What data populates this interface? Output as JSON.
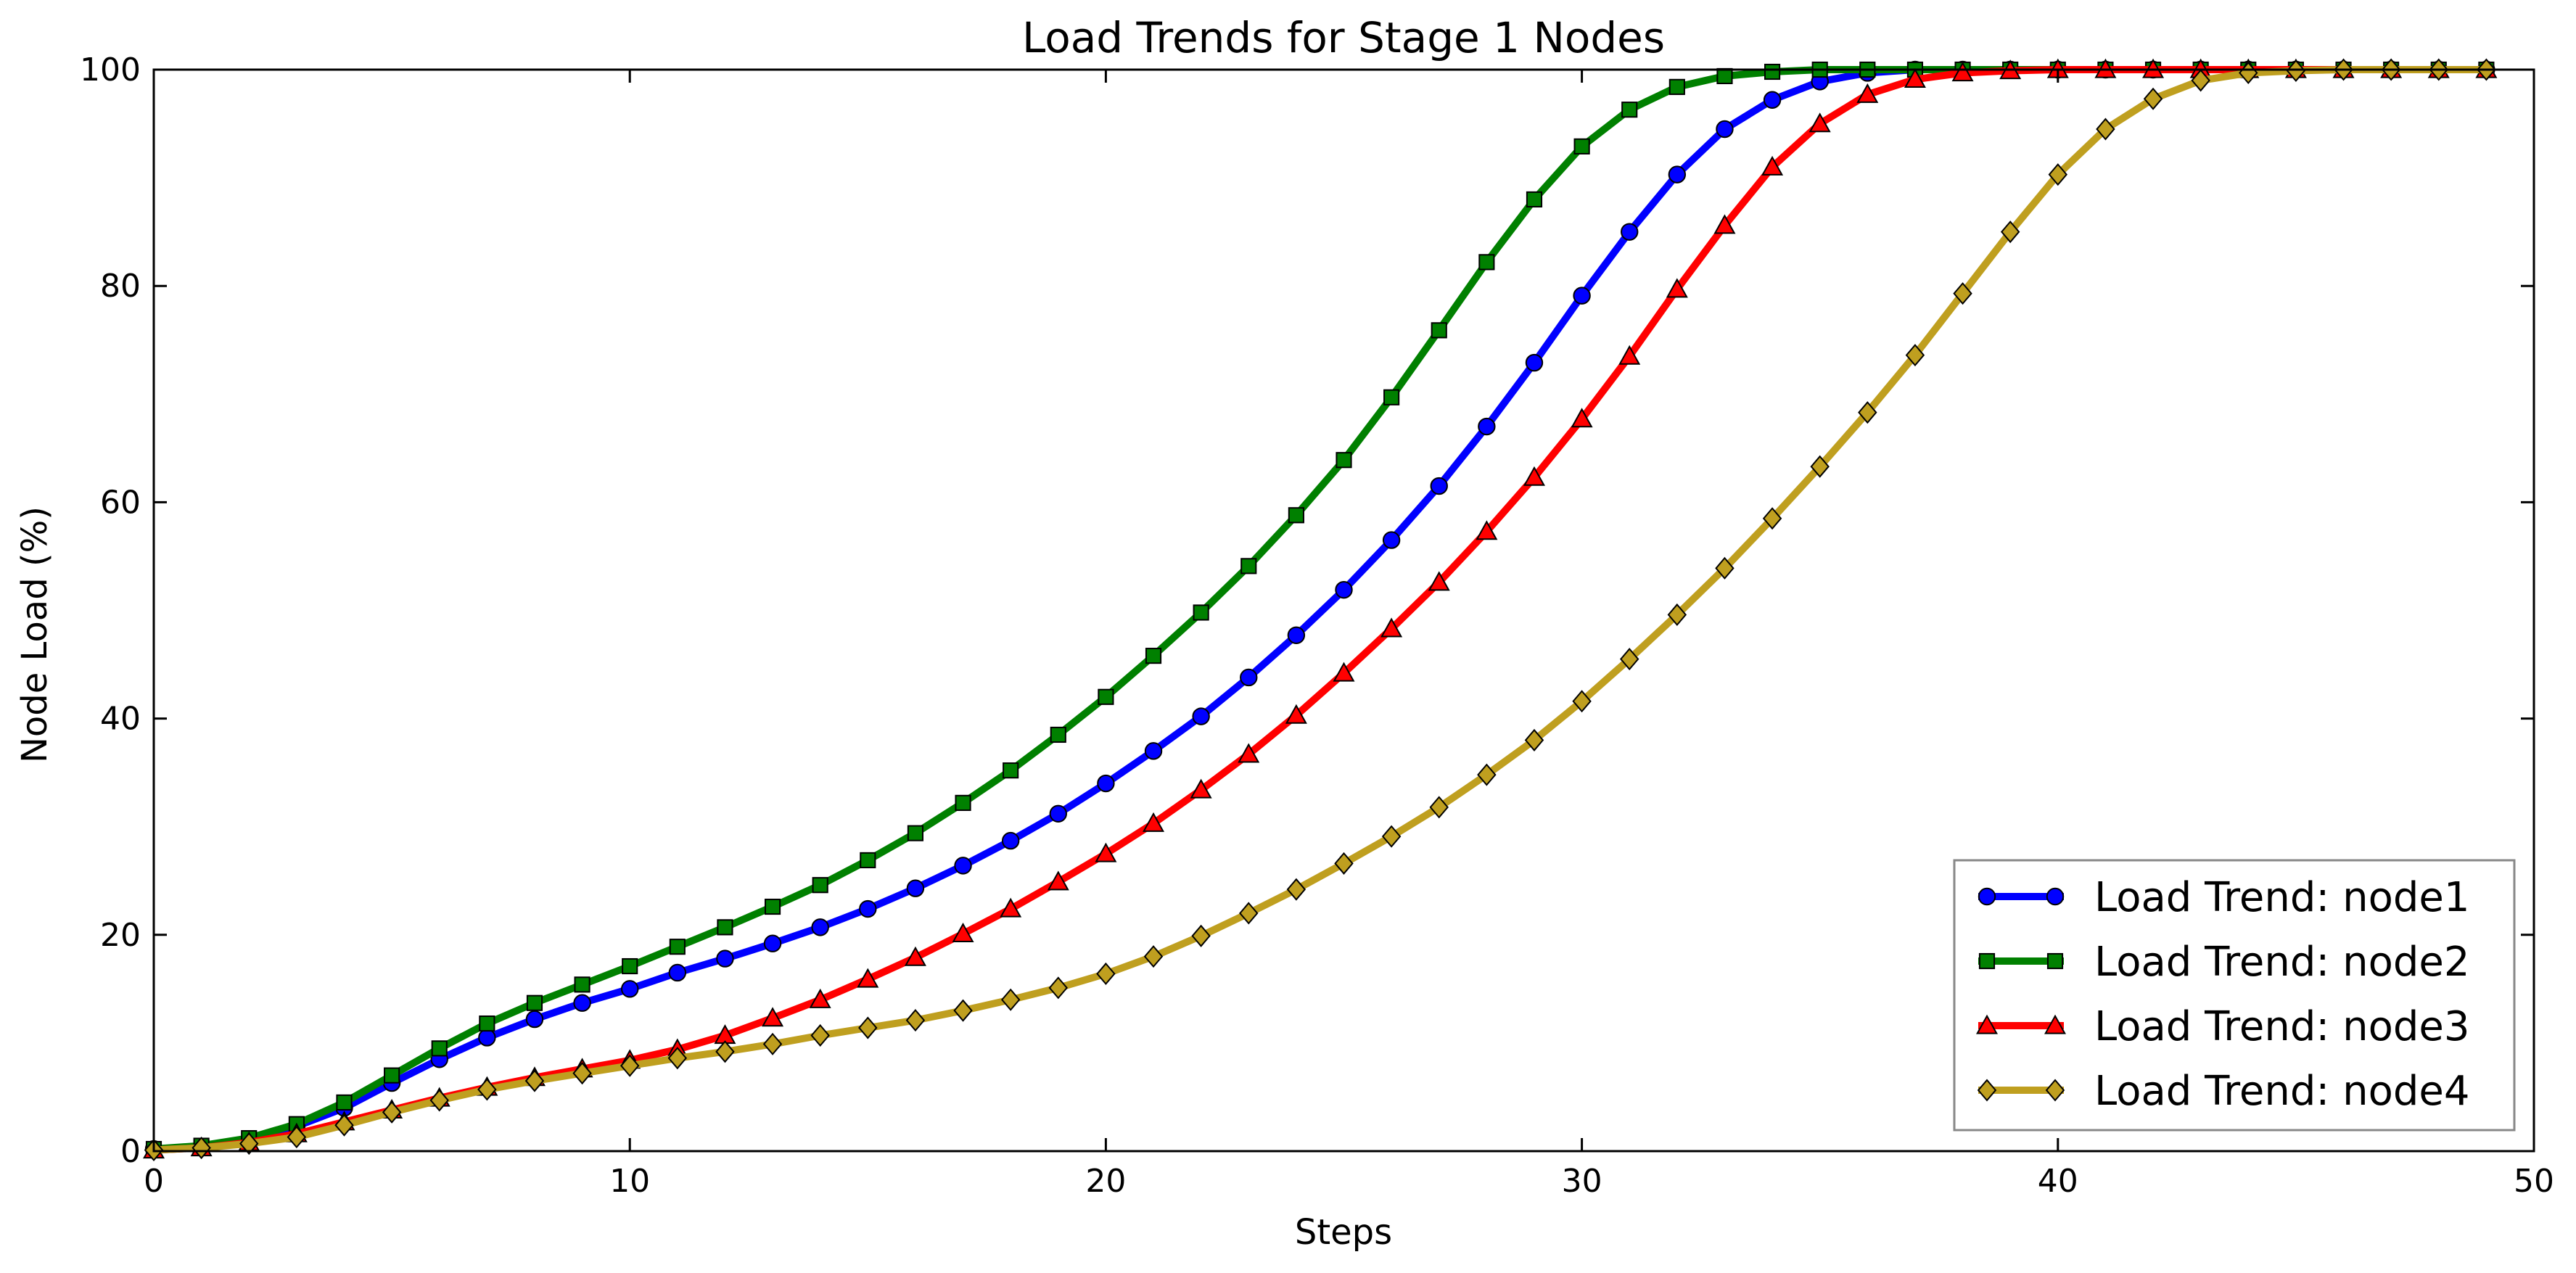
{
  "chart_data": {
    "type": "line",
    "title": "Load Trends for Stage 1 Nodes",
    "xlabel": "Steps",
    "ylabel": "Node Load (%)",
    "xlim": [
      0,
      50
    ],
    "ylim": [
      0,
      100
    ],
    "xticks": [
      0,
      10,
      20,
      30,
      40,
      50
    ],
    "yticks": [
      0,
      20,
      40,
      60,
      80,
      100
    ],
    "grid": false,
    "legend_position": "bottom-right",
    "x": [
      0,
      1,
      2,
      3,
      4,
      5,
      6,
      7,
      8,
      9,
      10,
      11,
      12,
      13,
      14,
      15,
      16,
      17,
      18,
      19,
      20,
      21,
      22,
      23,
      24,
      25,
      26,
      27,
      28,
      29,
      30,
      31,
      32,
      33,
      34,
      35,
      36,
      37,
      38,
      39,
      40,
      41,
      42,
      43,
      44,
      45,
      46,
      47,
      48,
      49
    ],
    "series": [
      {
        "name": "Load Trend: node1",
        "color": "#0000ff",
        "marker": "circle",
        "values": [
          0.2,
          0.4,
          1.0,
          2.3,
          4.0,
          6.3,
          8.5,
          10.5,
          12.2,
          13.7,
          15.0,
          16.5,
          17.8,
          19.2,
          20.7,
          22.4,
          24.3,
          26.4,
          28.7,
          31.2,
          34.0,
          37.0,
          40.2,
          43.8,
          47.7,
          51.9,
          56.5,
          61.5,
          67.0,
          72.9,
          79.1,
          85.0,
          90.3,
          94.5,
          97.2,
          98.9,
          99.7,
          100,
          100,
          100,
          100,
          100,
          100,
          100,
          100,
          100,
          100,
          100,
          100,
          100
        ]
      },
      {
        "name": "Load Trend: node2",
        "color": "#008000",
        "marker": "square",
        "values": [
          0.2,
          0.5,
          1.2,
          2.5,
          4.5,
          7.0,
          9.5,
          11.8,
          13.7,
          15.4,
          17.1,
          18.9,
          20.7,
          22.6,
          24.6,
          26.9,
          29.4,
          32.2,
          35.2,
          38.5,
          42.0,
          45.8,
          49.8,
          54.1,
          58.8,
          63.9,
          69.7,
          75.9,
          82.2,
          88.0,
          92.9,
          96.3,
          98.4,
          99.4,
          99.8,
          100,
          100,
          100,
          100,
          100,
          100,
          100,
          100,
          100,
          100,
          100,
          100,
          100,
          100,
          100
        ]
      },
      {
        "name": "Load Trend: node3",
        "color": "#ff0000",
        "marker": "triangle",
        "values": [
          0.1,
          0.3,
          0.8,
          1.6,
          2.7,
          3.8,
          4.9,
          5.9,
          6.8,
          7.6,
          8.4,
          9.4,
          10.7,
          12.3,
          14.0,
          15.9,
          17.9,
          20.1,
          22.4,
          24.9,
          27.5,
          30.3,
          33.4,
          36.7,
          40.3,
          44.2,
          48.3,
          52.6,
          57.3,
          62.3,
          67.7,
          73.5,
          79.7,
          85.6,
          91.0,
          95.0,
          97.7,
          99.1,
          99.7,
          99.9,
          100,
          100,
          100,
          100,
          100,
          100,
          100,
          100,
          100,
          100
        ]
      },
      {
        "name": "Load Trend: node4",
        "color": "#bf9f1f",
        "marker": "diamond",
        "values": [
          0.1,
          0.3,
          0.7,
          1.3,
          2.4,
          3.6,
          4.7,
          5.7,
          6.5,
          7.2,
          7.9,
          8.6,
          9.2,
          9.9,
          10.7,
          11.4,
          12.1,
          13.0,
          14.0,
          15.1,
          16.4,
          18.0,
          19.9,
          22.0,
          24.2,
          26.6,
          29.1,
          31.8,
          34.8,
          38.0,
          41.6,
          45.5,
          49.6,
          53.9,
          58.5,
          63.3,
          68.3,
          73.6,
          79.3,
          85.0,
          90.3,
          94.5,
          97.3,
          99.0,
          99.7,
          99.9,
          100,
          100,
          100,
          100
        ]
      }
    ]
  }
}
